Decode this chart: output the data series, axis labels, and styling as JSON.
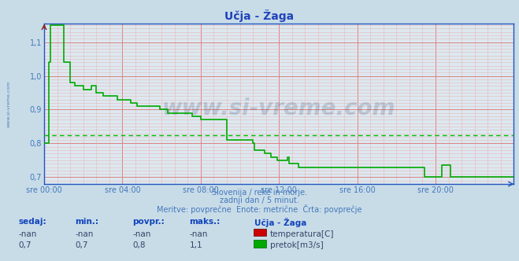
{
  "title": "Učja - Žaga",
  "bg_color": "#c8dce8",
  "plot_bg_color": "#dce8f0",
  "grid_color_major": "#e08080",
  "grid_color_minor": "#e8b8b8",
  "xlim": [
    0,
    288
  ],
  "ylim": [
    0.68,
    1.155
  ],
  "yticks": [
    0.7,
    0.8,
    0.9,
    1.0,
    1.1
  ],
  "ytick_labels": [
    "0,7",
    "0,8",
    "0,9",
    "1,0",
    "1,1"
  ],
  "xtick_positions": [
    0,
    48,
    96,
    144,
    192,
    240
  ],
  "xtick_labels": [
    "sre 00:00",
    "sre 04:00",
    "sre 08:00",
    "sre 12:00",
    "sre 16:00",
    "sre 20:00"
  ],
  "avg_line_y": 0.825,
  "avg_line_color": "#00bb00",
  "line_color_pretok": "#00aa00",
  "axis_color": "#2255bb",
  "watermark": "www.si-vreme.com",
  "watermark_color": "#1a3a6a",
  "watermark_alpha": 0.18,
  "subtitle1": "Slovenija / reke in morje.",
  "subtitle2": "zadnji dan / 5 minut.",
  "subtitle3": "Meritve: povprečne  Enote: metrične  Črta: povprečje",
  "subtitle_color": "#4477bb",
  "table_headers": [
    "sedaj:",
    "min.:",
    "povpr.:",
    "maks.:"
  ],
  "table_row1": [
    "-nan",
    "-nan",
    "-nan",
    "-nan"
  ],
  "table_row2": [
    "0,7",
    "0,7",
    "0,8",
    "1,1"
  ],
  "table_station": "Učja - Žaga",
  "sidebar_text": "www.si-vreme.com",
  "sidebar_color": "#2255aa",
  "pretok_x": [
    0,
    1,
    2,
    3,
    4,
    5,
    6,
    7,
    8,
    9,
    10,
    11,
    12,
    13,
    14,
    15,
    16,
    17,
    18,
    19,
    20,
    21,
    22,
    23,
    24,
    25,
    26,
    27,
    28,
    29,
    30,
    31,
    32,
    33,
    34,
    35,
    36,
    37,
    38,
    39,
    40,
    41,
    42,
    43,
    44,
    45,
    46,
    47,
    48,
    49,
    50,
    51,
    52,
    53,
    54,
    55,
    56,
    57,
    58,
    59,
    60,
    61,
    62,
    63,
    64,
    65,
    66,
    67,
    68,
    69,
    70,
    71,
    72,
    73,
    74,
    75,
    76,
    77,
    78,
    79,
    80,
    81,
    82,
    83,
    84,
    85,
    86,
    87,
    88,
    89,
    90,
    91,
    92,
    93,
    94,
    95,
    96,
    97,
    98,
    99,
    100,
    101,
    102,
    103,
    104,
    105,
    106,
    107,
    108,
    109,
    110,
    111,
    112,
    113,
    114,
    115,
    116,
    117,
    118,
    119,
    120,
    121,
    122,
    123,
    124,
    125,
    126,
    127,
    128,
    129,
    130,
    131,
    132,
    133,
    134,
    135,
    136,
    137,
    138,
    139,
    140,
    141,
    142,
    143,
    144,
    145,
    146,
    147,
    148,
    149,
    150,
    151,
    152,
    153,
    154,
    155,
    156,
    157,
    158,
    159,
    160,
    161,
    162,
    163,
    164,
    165,
    166,
    167,
    168,
    169,
    170,
    171,
    172,
    173,
    174,
    175,
    176,
    177,
    178,
    179,
    180,
    181,
    182,
    183,
    184,
    185,
    186,
    187,
    188,
    189,
    190,
    191,
    192,
    193,
    194,
    195,
    196,
    197,
    198,
    199,
    200,
    201,
    202,
    203,
    204,
    205,
    206,
    207,
    208,
    209,
    210,
    211,
    212,
    213,
    214,
    215,
    216,
    217,
    218,
    219,
    220,
    221,
    222,
    223,
    224,
    225,
    226,
    227,
    228,
    229,
    230,
    231,
    232,
    233,
    234,
    235,
    236,
    237,
    238,
    239,
    240,
    241,
    242,
    243,
    244,
    245,
    246,
    247,
    248,
    249,
    250,
    251,
    252,
    253,
    254,
    255,
    256,
    257,
    258,
    259,
    260,
    261,
    262,
    263,
    264,
    265,
    266,
    267,
    268,
    269,
    270,
    271,
    272,
    273,
    274,
    275,
    276,
    277,
    278,
    279,
    280,
    281,
    282,
    283,
    284,
    285,
    286,
    287,
    288
  ],
  "pretok_y": [
    0.8,
    0.8,
    0.8,
    1.04,
    1.15,
    1.15,
    1.15,
    1.15,
    1.15,
    1.15,
    1.15,
    1.15,
    1.04,
    1.04,
    1.04,
    1.04,
    0.98,
    0.98,
    0.98,
    0.97,
    0.97,
    0.97,
    0.97,
    0.97,
    0.96,
    0.96,
    0.96,
    0.96,
    0.96,
    0.97,
    0.97,
    0.97,
    0.95,
    0.95,
    0.95,
    0.95,
    0.94,
    0.94,
    0.94,
    0.94,
    0.94,
    0.94,
    0.94,
    0.94,
    0.94,
    0.93,
    0.93,
    0.93,
    0.93,
    0.93,
    0.93,
    0.93,
    0.93,
    0.92,
    0.92,
    0.92,
    0.92,
    0.91,
    0.91,
    0.91,
    0.91,
    0.91,
    0.91,
    0.91,
    0.91,
    0.91,
    0.91,
    0.91,
    0.91,
    0.91,
    0.91,
    0.9,
    0.9,
    0.9,
    0.9,
    0.9,
    0.89,
    0.89,
    0.89,
    0.89,
    0.89,
    0.89,
    0.89,
    0.89,
    0.89,
    0.89,
    0.89,
    0.89,
    0.89,
    0.89,
    0.89,
    0.88,
    0.88,
    0.88,
    0.88,
    0.88,
    0.87,
    0.87,
    0.87,
    0.87,
    0.87,
    0.87,
    0.87,
    0.87,
    0.87,
    0.87,
    0.87,
    0.87,
    0.87,
    0.87,
    0.87,
    0.87,
    0.81,
    0.81,
    0.81,
    0.81,
    0.81,
    0.81,
    0.81,
    0.81,
    0.81,
    0.81,
    0.81,
    0.81,
    0.81,
    0.81,
    0.81,
    0.81,
    0.8,
    0.78,
    0.78,
    0.78,
    0.78,
    0.78,
    0.78,
    0.77,
    0.77,
    0.77,
    0.77,
    0.76,
    0.76,
    0.76,
    0.76,
    0.75,
    0.75,
    0.75,
    0.75,
    0.75,
    0.75,
    0.76,
    0.74,
    0.74,
    0.74,
    0.74,
    0.74,
    0.74,
    0.73,
    0.73,
    0.73,
    0.73,
    0.73,
    0.73,
    0.73,
    0.73,
    0.73,
    0.73,
    0.73,
    0.73,
    0.73,
    0.73,
    0.73,
    0.73,
    0.73,
    0.73,
    0.73,
    0.73,
    0.73,
    0.73,
    0.73,
    0.73,
    0.73,
    0.73,
    0.73,
    0.73,
    0.73,
    0.73,
    0.73,
    0.73,
    0.73,
    0.73,
    0.73,
    0.73,
    0.73,
    0.73,
    0.73,
    0.73,
    0.73,
    0.73,
    0.73,
    0.73,
    0.73,
    0.73,
    0.73,
    0.73,
    0.73,
    0.73,
    0.73,
    0.73,
    0.73,
    0.73,
    0.73,
    0.73,
    0.73,
    0.73,
    0.73,
    0.73,
    0.73,
    0.73,
    0.73,
    0.73,
    0.73,
    0.73,
    0.73,
    0.73,
    0.73,
    0.73,
    0.73,
    0.73,
    0.73,
    0.73,
    0.73,
    0.73,
    0.73,
    0.7,
    0.7,
    0.7,
    0.7,
    0.7,
    0.7,
    0.7,
    0.7,
    0.7,
    0.7,
    0.7,
    0.735,
    0.735,
    0.735,
    0.735,
    0.735,
    0.7,
    0.7,
    0.7,
    0.7,
    0.7,
    0.7,
    0.7,
    0.7,
    0.7,
    0.7,
    0.7,
    0.7,
    0.7,
    0.7,
    0.7,
    0.7,
    0.7,
    0.7,
    0.7,
    0.7,
    0.7,
    0.7,
    0.7,
    0.7,
    0.7,
    0.7,
    0.7,
    0.7,
    0.7,
    0.7,
    0.7,
    0.7,
    0.7,
    0.7,
    0.7,
    0.7,
    0.7,
    0.7,
    0.7,
    0.7
  ]
}
